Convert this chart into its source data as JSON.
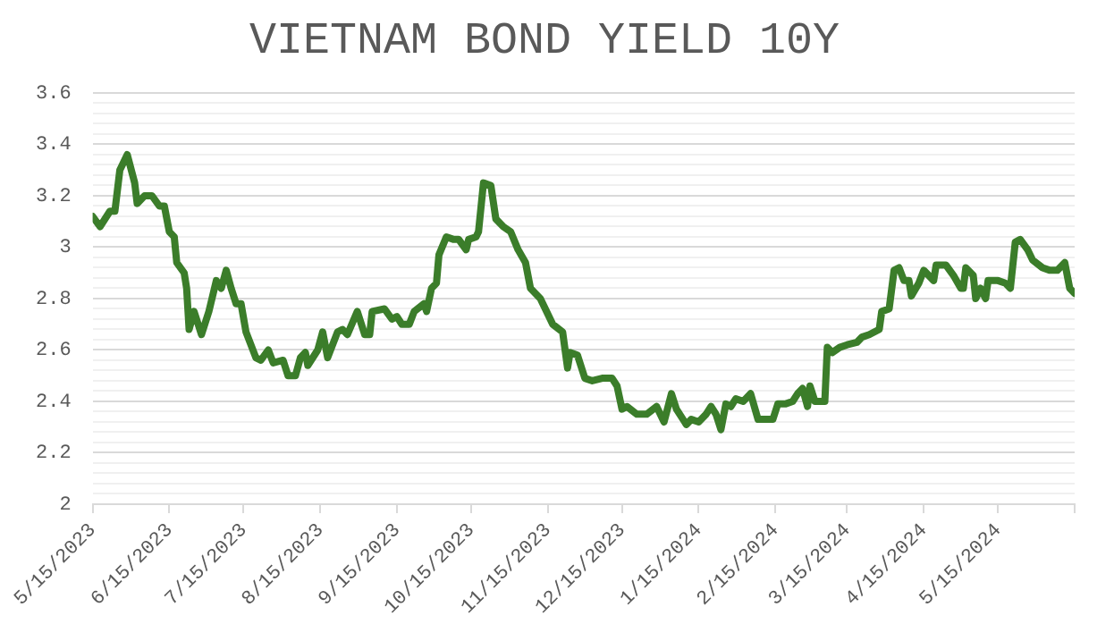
{
  "chart_data": {
    "type": "line",
    "title": "VIETNAM BOND YIELD 10Y",
    "color": "#3b7d2a",
    "grid": "y",
    "marker": "none",
    "legend": false,
    "x": [
      "2023-05-15",
      "2023-05-18",
      "2023-05-22",
      "2023-05-24",
      "2023-05-26",
      "2023-05-29",
      "2023-06-01",
      "2023-06-02",
      "2023-06-05",
      "2023-06-08",
      "2023-06-11",
      "2023-06-13",
      "2023-06-15",
      "2023-06-17",
      "2023-06-18",
      "2023-06-21",
      "2023-06-22",
      "2023-06-23",
      "2023-06-25",
      "2023-06-28",
      "2023-07-01",
      "2023-07-04",
      "2023-07-06",
      "2023-07-08",
      "2023-07-10",
      "2023-07-12",
      "2023-07-14",
      "2023-07-16",
      "2023-07-20",
      "2023-07-22",
      "2023-07-25",
      "2023-07-27",
      "2023-07-31",
      "2023-08-02",
      "2023-08-05",
      "2023-08-07",
      "2023-08-09",
      "2023-08-10",
      "2023-08-14",
      "2023-08-16",
      "2023-08-18",
      "2023-08-22",
      "2023-08-24",
      "2023-08-26",
      "2023-08-30",
      "2023-09-02",
      "2023-09-04",
      "2023-09-05",
      "2023-09-10",
      "2023-09-13",
      "2023-09-15",
      "2023-09-17",
      "2023-09-20",
      "2023-09-22",
      "2023-09-26",
      "2023-09-27",
      "2023-09-29",
      "2023-10-01",
      "2023-10-02",
      "2023-10-05",
      "2023-10-08",
      "2023-10-10",
      "2023-10-13",
      "2023-10-14",
      "2023-10-17",
      "2023-10-18",
      "2023-10-20",
      "2023-10-23",
      "2023-10-25",
      "2023-10-28",
      "2023-10-31",
      "2023-11-03",
      "2023-11-06",
      "2023-11-08",
      "2023-11-12",
      "2023-11-17",
      "2023-11-21",
      "2023-11-23",
      "2023-11-24",
      "2023-11-27",
      "2023-11-30",
      "2023-12-03",
      "2023-12-07",
      "2023-12-11",
      "2023-12-13",
      "2023-12-15",
      "2023-12-17",
      "2023-12-21",
      "2023-12-25",
      "2023-12-29",
      "2024-01-01",
      "2024-01-04",
      "2024-01-06",
      "2024-01-10",
      "2024-01-12",
      "2024-01-15",
      "2024-01-18",
      "2024-01-20",
      "2024-01-22",
      "2024-01-24",
      "2024-01-26",
      "2024-01-28",
      "2024-01-30",
      "2024-02-02",
      "2024-02-05",
      "2024-02-08",
      "2024-02-14",
      "2024-02-16",
      "2024-02-19",
      "2024-02-22",
      "2024-02-24",
      "2024-02-26",
      "2024-02-28",
      "2024-02-29",
      "2024-03-02",
      "2024-03-06",
      "2024-03-07",
      "2024-03-09",
      "2024-03-12",
      "2024-03-15",
      "2024-03-19",
      "2024-03-21",
      "2024-03-24",
      "2024-03-28",
      "2024-03-29",
      "2024-04-01",
      "2024-04-03",
      "2024-04-05",
      "2024-04-07",
      "2024-04-09",
      "2024-04-10",
      "2024-04-13",
      "2024-04-15",
      "2024-04-17",
      "2024-04-19",
      "2024-04-20",
      "2024-04-24",
      "2024-04-27",
      "2024-04-30",
      "2024-05-01",
      "2024-05-02",
      "2024-05-05",
      "2024-05-06",
      "2024-05-08",
      "2024-05-10",
      "2024-05-11",
      "2024-05-15",
      "2024-05-18",
      "2024-05-20",
      "2024-05-22",
      "2024-05-24",
      "2024-05-27",
      "2024-05-29",
      "2024-06-02",
      "2024-06-05",
      "2024-06-08",
      "2024-06-11",
      "2024-06-13",
      "2024-06-15"
    ],
    "values": [
      3.12,
      3.08,
      3.14,
      3.14,
      3.3,
      3.36,
      3.25,
      3.17,
      3.2,
      3.2,
      3.16,
      3.16,
      3.06,
      3.04,
      2.94,
      2.9,
      2.84,
      2.68,
      2.75,
      2.66,
      2.75,
      2.87,
      2.84,
      2.91,
      2.84,
      2.78,
      2.78,
      2.67,
      2.57,
      2.56,
      2.6,
      2.55,
      2.56,
      2.5,
      2.5,
      2.57,
      2.59,
      2.54,
      2.6,
      2.67,
      2.57,
      2.67,
      2.68,
      2.66,
      2.75,
      2.66,
      2.66,
      2.75,
      2.76,
      2.72,
      2.73,
      2.7,
      2.7,
      2.75,
      2.78,
      2.75,
      2.84,
      2.86,
      2.97,
      3.04,
      3.03,
      3.03,
      2.99,
      3.03,
      3.04,
      3.06,
      3.25,
      3.24,
      3.11,
      3.08,
      3.06,
      2.99,
      2.94,
      2.84,
      2.8,
      2.7,
      2.67,
      2.53,
      2.59,
      2.58,
      2.49,
      2.48,
      2.49,
      2.49,
      2.46,
      2.37,
      2.38,
      2.35,
      2.35,
      2.38,
      2.32,
      2.43,
      2.37,
      2.31,
      2.33,
      2.32,
      2.35,
      2.38,
      2.35,
      2.29,
      2.39,
      2.38,
      2.41,
      2.4,
      2.43,
      2.33,
      2.33,
      2.39,
      2.39,
      2.4,
      2.43,
      2.45,
      2.38,
      2.46,
      2.4,
      2.4,
      2.61,
      2.59,
      2.61,
      2.62,
      2.63,
      2.65,
      2.66,
      2.68,
      2.75,
      2.76,
      2.91,
      2.92,
      2.87,
      2.87,
      2.81,
      2.86,
      2.91,
      2.89,
      2.87,
      2.93,
      2.93,
      2.89,
      2.84,
      2.84,
      2.92,
      2.89,
      2.8,
      2.84,
      2.8,
      2.87,
      2.87,
      2.86,
      2.84,
      3.02,
      3.03,
      2.99,
      2.95,
      2.92,
      2.91,
      2.91,
      2.94,
      2.84,
      2.82
    ],
    "xlim": [
      "2023-05-15",
      "2024-06-15"
    ],
    "xticks": [
      {
        "value": "2023-05-15",
        "label": "5/15/2023"
      },
      {
        "value": "2023-06-15",
        "label": "6/15/2023"
      },
      {
        "value": "2023-07-15",
        "label": "7/15/2023"
      },
      {
        "value": "2023-08-15",
        "label": "8/15/2023"
      },
      {
        "value": "2023-09-15",
        "label": "9/15/2023"
      },
      {
        "value": "2023-10-15",
        "label": "10/15/2023"
      },
      {
        "value": "2023-11-15",
        "label": "11/15/2023"
      },
      {
        "value": "2023-12-15",
        "label": "12/15/2023"
      },
      {
        "value": "2024-01-15",
        "label": "1/15/2024"
      },
      {
        "value": "2024-02-15",
        "label": "2/15/2024"
      },
      {
        "value": "2024-03-15",
        "label": "3/15/2024"
      },
      {
        "value": "2024-04-15",
        "label": "4/15/2024"
      },
      {
        "value": "2024-05-15",
        "label": "5/15/2024"
      },
      {
        "value": "2024-06-15",
        "label": null
      }
    ],
    "ylim": [
      2,
      3.6
    ],
    "yticks": [
      {
        "value": 2,
        "label": "2"
      },
      {
        "value": 2.04,
        "label": null
      },
      {
        "value": 2.08,
        "label": null
      },
      {
        "value": 2.12,
        "label": null
      },
      {
        "value": 2.16,
        "label": null
      },
      {
        "value": 2.2,
        "label": "2.2"
      },
      {
        "value": 2.24,
        "label": null
      },
      {
        "value": 2.28,
        "label": null
      },
      {
        "value": 2.32,
        "label": null
      },
      {
        "value": 2.36,
        "label": null
      },
      {
        "value": 2.4,
        "label": "2.4"
      },
      {
        "value": 2.44,
        "label": null
      },
      {
        "value": 2.48,
        "label": null
      },
      {
        "value": 2.52,
        "label": null
      },
      {
        "value": 2.56,
        "label": null
      },
      {
        "value": 2.6,
        "label": "2.6"
      },
      {
        "value": 2.64,
        "label": null
      },
      {
        "value": 2.68,
        "label": null
      },
      {
        "value": 2.72,
        "label": null
      },
      {
        "value": 2.76,
        "label": null
      },
      {
        "value": 2.8,
        "label": "2.8"
      },
      {
        "value": 2.84,
        "label": null
      },
      {
        "value": 2.88,
        "label": null
      },
      {
        "value": 2.92,
        "label": null
      },
      {
        "value": 2.96,
        "label": null
      },
      {
        "value": 3,
        "label": "3"
      },
      {
        "value": 3.04,
        "label": null
      },
      {
        "value": 3.08,
        "label": null
      },
      {
        "value": 3.12,
        "label": null
      },
      {
        "value": 3.16,
        "label": null
      },
      {
        "value": 3.2,
        "label": "3.2"
      },
      {
        "value": 3.24,
        "label": null
      },
      {
        "value": 3.28,
        "label": null
      },
      {
        "value": 3.32,
        "label": null
      },
      {
        "value": 3.36,
        "label": null
      },
      {
        "value": 3.4,
        "label": "3.4"
      },
      {
        "value": 3.44,
        "label": null
      },
      {
        "value": 3.48,
        "label": null
      },
      {
        "value": 3.52,
        "label": null
      },
      {
        "value": 3.56,
        "label": null
      },
      {
        "value": 3.6,
        "label": "3.6"
      }
    ]
  }
}
